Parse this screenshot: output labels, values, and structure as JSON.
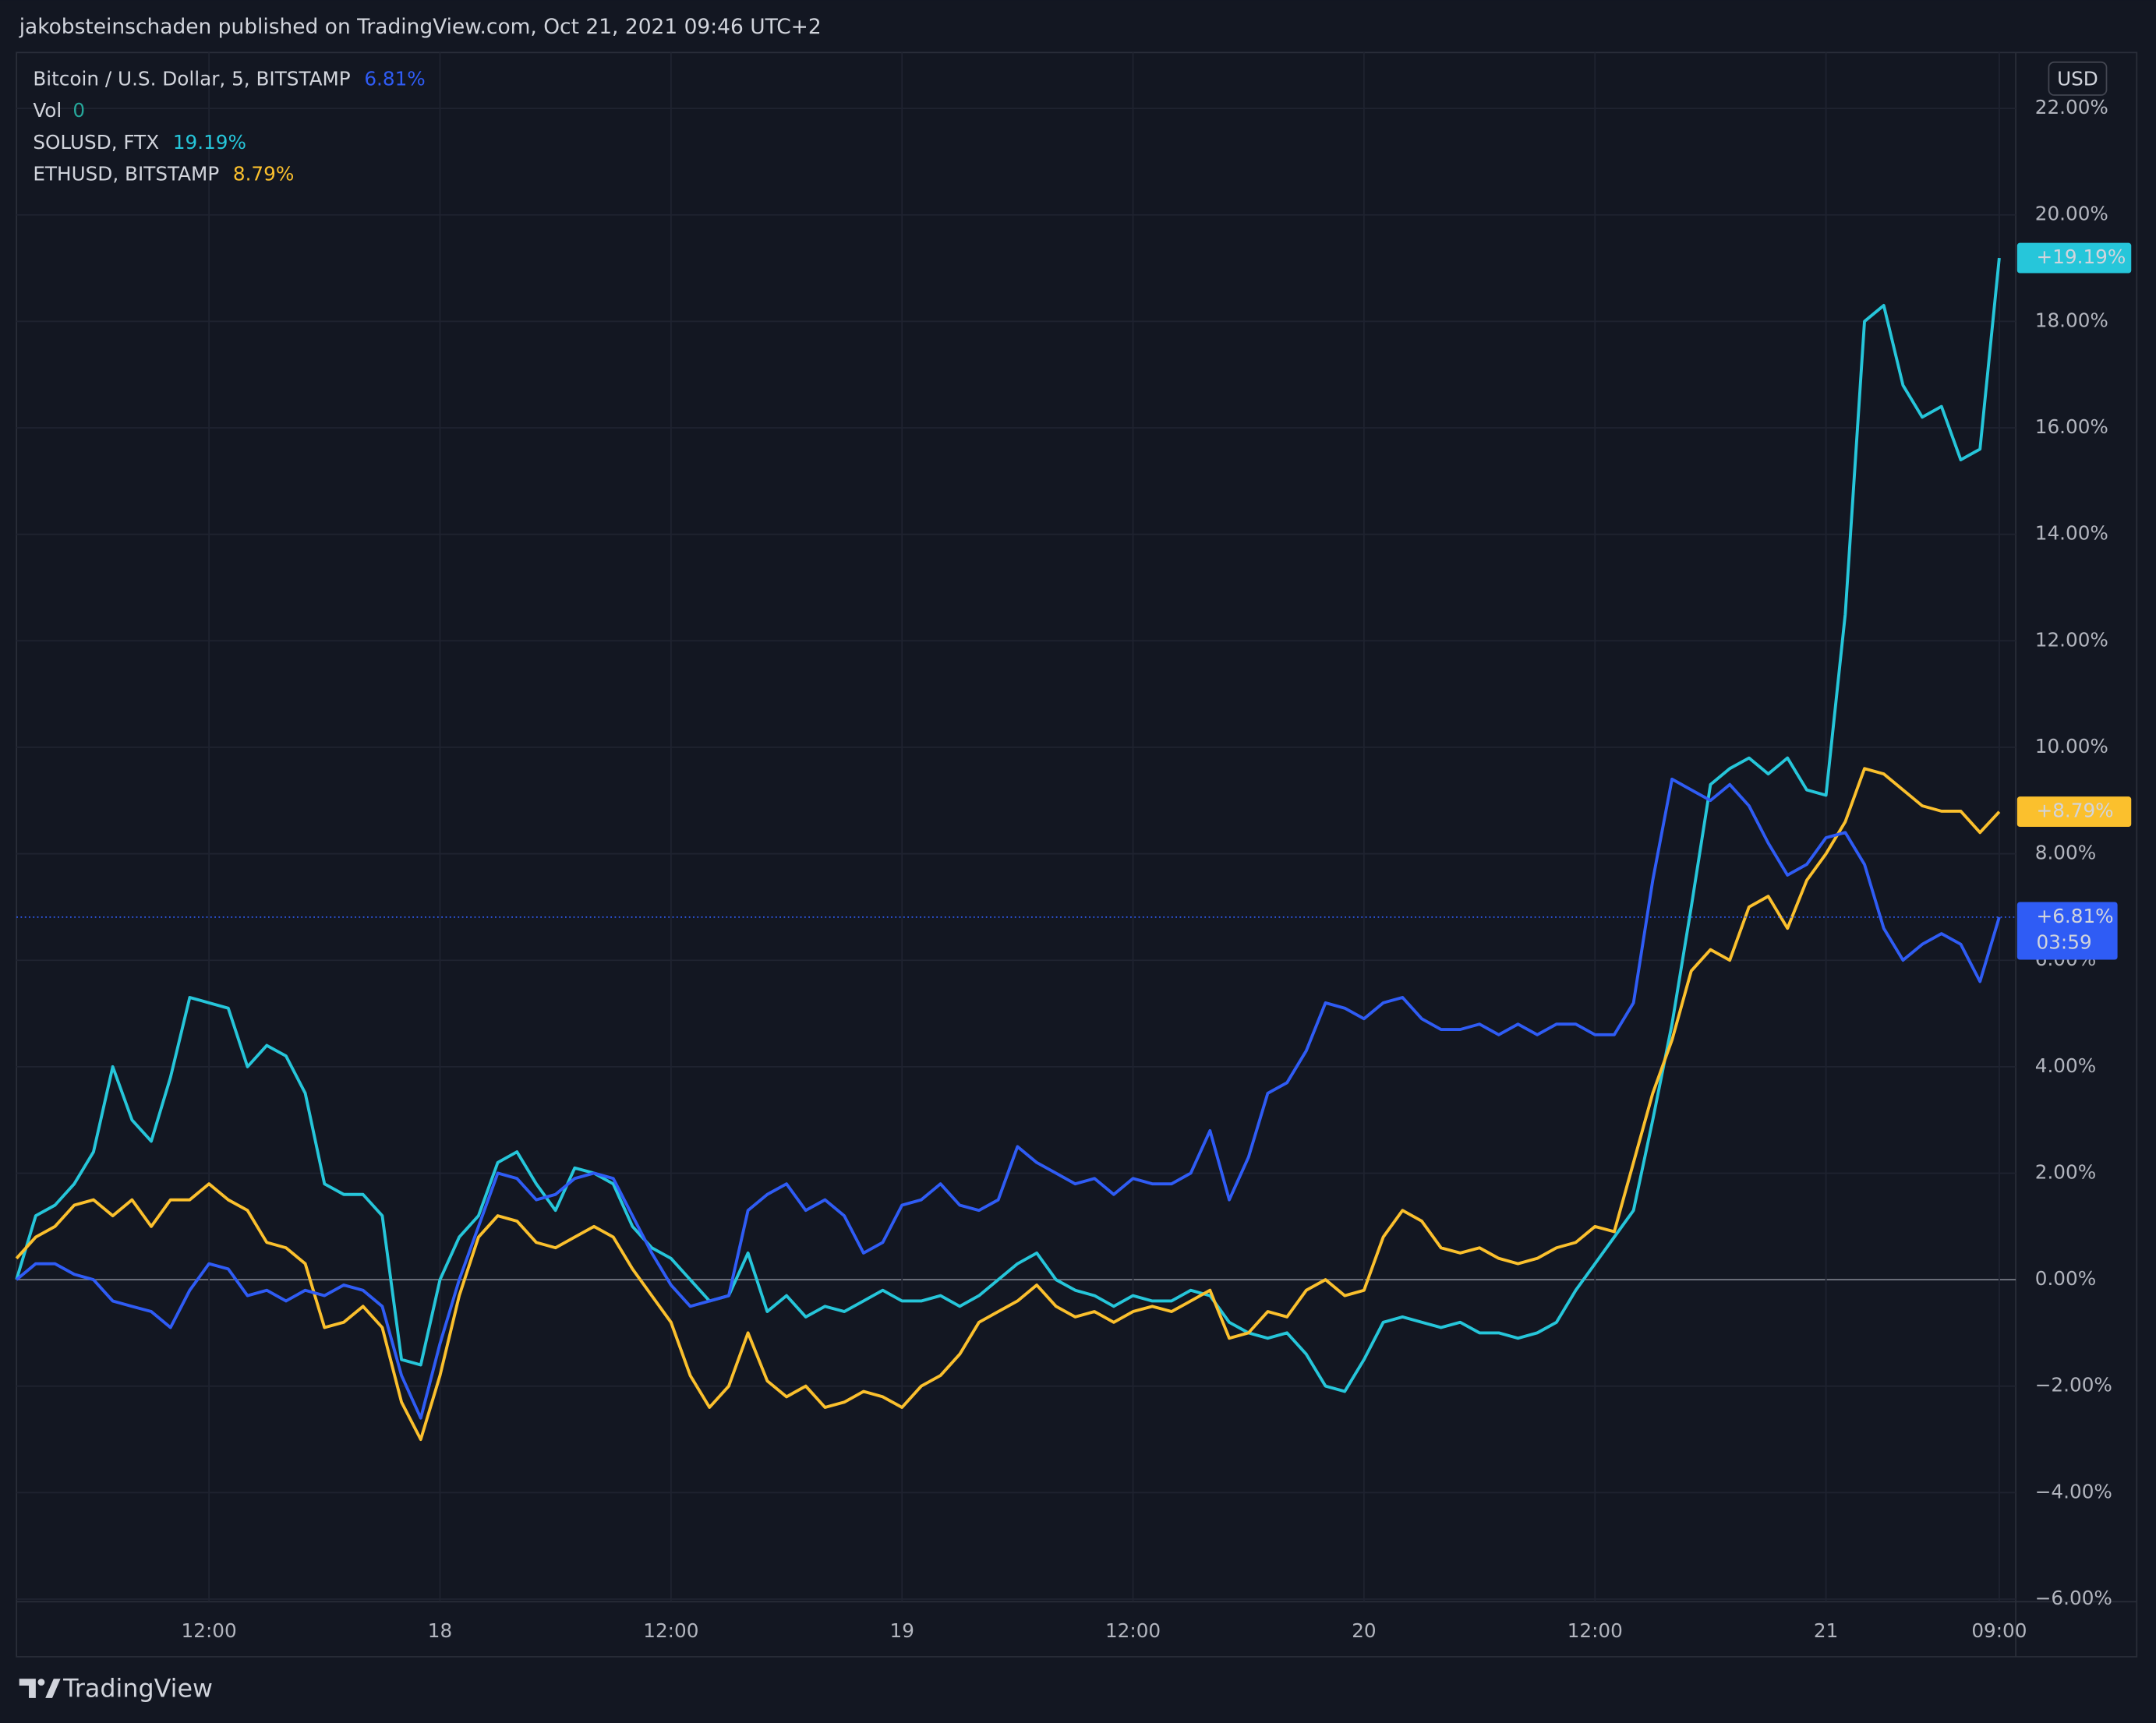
{
  "header": {
    "text": "jakobsteinschaden published on TradingView.com, Oct 21, 2021 09:46 UTC+2"
  },
  "footer": {
    "brand": "TradingView"
  },
  "chart_data": {
    "type": "line",
    "currency": "USD",
    "categories": [
      null,
      null,
      null,
      null,
      null,
      null,
      null,
      null,
      null,
      null,
      "12:00",
      null,
      null,
      null,
      null,
      null,
      null,
      null,
      null,
      null,
      null,
      null,
      "18",
      null,
      null,
      null,
      null,
      null,
      null,
      null,
      null,
      null,
      null,
      null,
      "12:00",
      null,
      null,
      null,
      null,
      null,
      null,
      null,
      null,
      null,
      null,
      null,
      "19",
      null,
      null,
      null,
      null,
      null,
      null,
      null,
      null,
      null,
      null,
      null,
      "12:00",
      null,
      null,
      null,
      null,
      null,
      null,
      null,
      null,
      null,
      null,
      null,
      "20",
      null,
      null,
      null,
      null,
      null,
      null,
      null,
      null,
      null,
      null,
      null,
      "12:00",
      null,
      null,
      null,
      null,
      null,
      null,
      null,
      null,
      null,
      null,
      null,
      "21",
      null,
      null,
      null,
      null,
      null,
      null,
      null,
      null,
      "09:00"
    ],
    "series": [
      {
        "name": "SOLUSD, FTX",
        "color": "#26c6da",
        "last_label": "19.19%",
        "tag_label": "+19.19%",
        "values": [
          0.0,
          1.2,
          1.4,
          1.8,
          2.4,
          4.0,
          3.0,
          2.6,
          3.8,
          5.3,
          5.2,
          5.1,
          4.0,
          4.4,
          4.2,
          3.5,
          1.8,
          1.6,
          1.6,
          1.2,
          -1.5,
          -1.6,
          0.0,
          0.8,
          1.2,
          2.2,
          2.4,
          1.8,
          1.3,
          2.1,
          2.0,
          1.8,
          1.0,
          0.6,
          0.4,
          0.0,
          -0.4,
          -0.3,
          0.5,
          -0.6,
          -0.3,
          -0.7,
          -0.5,
          -0.6,
          -0.4,
          -0.2,
          -0.4,
          -0.4,
          -0.3,
          -0.5,
          -0.3,
          0.0,
          0.3,
          0.5,
          0.0,
          -0.2,
          -0.3,
          -0.5,
          -0.3,
          -0.4,
          -0.4,
          -0.2,
          -0.3,
          -0.8,
          -1.0,
          -1.1,
          -1.0,
          -1.4,
          -2.0,
          -2.1,
          -1.5,
          -0.8,
          -0.7,
          -0.8,
          -0.9,
          -0.8,
          -1.0,
          -1.0,
          -1.1,
          -1.0,
          -0.8,
          -0.2,
          0.3,
          0.8,
          1.3,
          3.0,
          4.8,
          7.0,
          9.3,
          9.6,
          9.8,
          9.5,
          9.8,
          9.2,
          9.1,
          12.5,
          18.0,
          18.3,
          16.8,
          16.2,
          16.4,
          15.4,
          15.6,
          19.19
        ]
      },
      {
        "name": "ETHUSD, BITSTAMP",
        "color": "#fbc02d",
        "last_label": "8.79%",
        "tag_label": "+8.79%",
        "values": [
          0.4,
          0.8,
          1.0,
          1.4,
          1.5,
          1.2,
          1.5,
          1.0,
          1.5,
          1.5,
          1.8,
          1.5,
          1.3,
          0.7,
          0.6,
          0.3,
          -0.9,
          -0.8,
          -0.5,
          -0.9,
          -2.3,
          -3.0,
          -1.8,
          -0.3,
          0.8,
          1.2,
          1.1,
          0.7,
          0.6,
          0.8,
          1.0,
          0.8,
          0.2,
          -0.3,
          -0.8,
          -1.8,
          -2.4,
          -2.0,
          -1.0,
          -1.9,
          -2.2,
          -2.0,
          -2.4,
          -2.3,
          -2.1,
          -2.2,
          -2.4,
          -2.0,
          -1.8,
          -1.4,
          -0.8,
          -0.6,
          -0.4,
          -0.1,
          -0.5,
          -0.7,
          -0.6,
          -0.8,
          -0.6,
          -0.5,
          -0.6,
          -0.4,
          -0.2,
          -1.1,
          -1.0,
          -0.6,
          -0.7,
          -0.2,
          0.0,
          -0.3,
          -0.2,
          0.8,
          1.3,
          1.1,
          0.6,
          0.5,
          0.6,
          0.4,
          0.3,
          0.4,
          0.6,
          0.7,
          1.0,
          0.9,
          2.2,
          3.5,
          4.5,
          5.8,
          6.2,
          6.0,
          7.0,
          7.2,
          6.6,
          7.5,
          8.0,
          8.6,
          9.6,
          9.5,
          9.2,
          8.9,
          8.8,
          8.8,
          8.4,
          8.79
        ]
      },
      {
        "name": "Bitcoin / U.S. Dollar, 5, BITSTAMP",
        "color": "#2f5cf5",
        "last_label": "6.81%",
        "tag_label": "+6.81%",
        "countdown": "03:59",
        "values": [
          0.0,
          0.3,
          0.3,
          0.1,
          0.0,
          -0.4,
          -0.5,
          -0.6,
          -0.9,
          -0.2,
          0.3,
          0.2,
          -0.3,
          -0.2,
          -0.4,
          -0.2,
          -0.3,
          -0.1,
          -0.2,
          -0.5,
          -1.8,
          -2.6,
          -1.2,
          0.0,
          1.0,
          2.0,
          1.9,
          1.5,
          1.6,
          1.9,
          2.0,
          1.9,
          1.2,
          0.5,
          -0.1,
          -0.5,
          -0.4,
          -0.3,
          1.3,
          1.6,
          1.8,
          1.3,
          1.5,
          1.2,
          0.5,
          0.7,
          1.4,
          1.5,
          1.8,
          1.4,
          1.3,
          1.5,
          2.5,
          2.2,
          2.0,
          1.8,
          1.9,
          1.6,
          1.9,
          1.8,
          1.8,
          2.0,
          2.8,
          1.5,
          2.3,
          3.5,
          3.7,
          4.3,
          5.2,
          5.1,
          4.9,
          5.2,
          5.3,
          4.9,
          4.7,
          4.7,
          4.8,
          4.6,
          4.8,
          4.6,
          4.8,
          4.8,
          4.6,
          4.6,
          5.2,
          7.5,
          9.4,
          9.2,
          9.0,
          9.3,
          8.9,
          8.2,
          7.6,
          7.8,
          8.3,
          8.4,
          7.8,
          6.6,
          6.0,
          6.3,
          6.5,
          6.3,
          5.6,
          6.81
        ]
      }
    ],
    "volume": {
      "name": "Vol",
      "value": 0,
      "color": "#26a69a"
    },
    "ylim": [
      -6.05,
      23.05
    ],
    "yticks": [
      {
        "value": -6,
        "label": "−6.00%"
      },
      {
        "value": -4,
        "label": "−4.00%"
      },
      {
        "value": -2,
        "label": "−2.00%"
      },
      {
        "value": 0,
        "label": "0.00%"
      },
      {
        "value": 2,
        "label": "2.00%"
      },
      {
        "value": 4,
        "label": "4.00%"
      },
      {
        "value": 6,
        "label": "6.00%"
      },
      {
        "value": 8,
        "label": "8.00%"
      },
      {
        "value": 10,
        "label": "10.00%"
      },
      {
        "value": 12,
        "label": "12.00%"
      },
      {
        "value": 14,
        "label": "14.00%"
      },
      {
        "value": 16,
        "label": "16.00%"
      },
      {
        "value": 18,
        "label": "18.00%"
      },
      {
        "value": 20,
        "label": "20.00%"
      },
      {
        "value": 22,
        "label": "22.00%"
      }
    ],
    "grid": true
  }
}
